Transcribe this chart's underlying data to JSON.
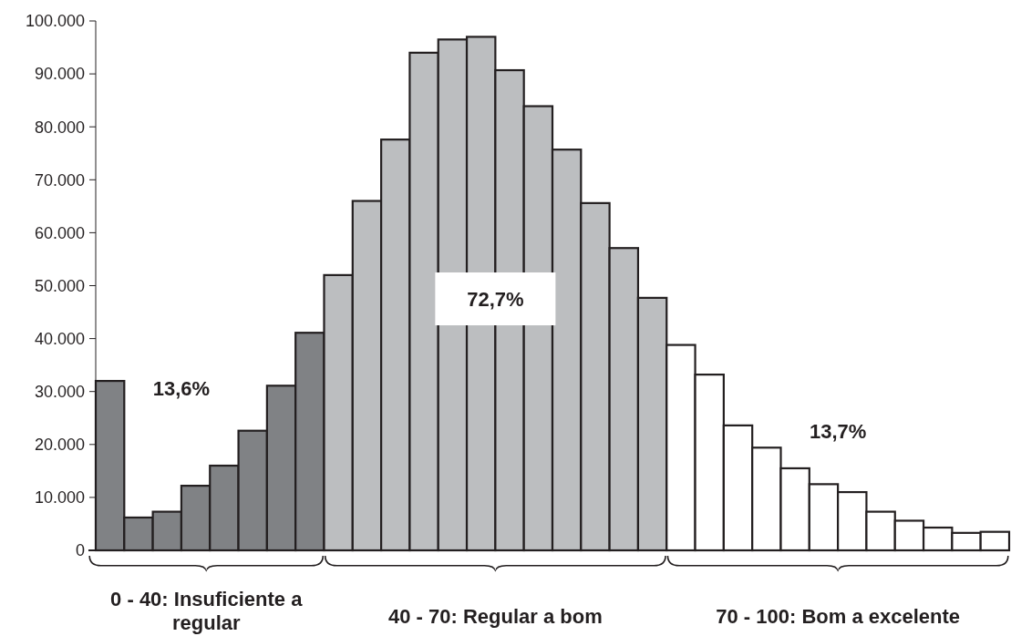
{
  "chart_data": {
    "type": "bar",
    "categories": [
      null,
      null,
      null,
      null,
      null,
      null,
      null,
      null,
      null,
      null,
      null,
      null,
      null,
      null,
      null,
      null,
      null,
      null,
      null,
      null,
      null,
      null,
      null,
      null,
      null,
      null,
      null,
      null,
      null,
      null,
      null,
      null
    ],
    "values": [
      32000,
      6200,
      7300,
      12200,
      16000,
      22600,
      31100,
      41100,
      52000,
      66000,
      77600,
      94000,
      96500,
      97000,
      90700,
      83900,
      75700,
      65600,
      57100,
      47700,
      38800,
      33200,
      23600,
      19400,
      15500,
      12500,
      11000,
      7300,
      5600,
      4300,
      3300,
      3500
    ],
    "colors": [
      "#808285",
      "#808285",
      "#808285",
      "#808285",
      "#808285",
      "#808285",
      "#808285",
      "#808285",
      "#bcbec0",
      "#bcbec0",
      "#bcbec0",
      "#bcbec0",
      "#bcbec0",
      "#bcbec0",
      "#bcbec0",
      "#bcbec0",
      "#bcbec0",
      "#bcbec0",
      "#bcbec0",
      "#bcbec0",
      "#ffffff",
      "#ffffff",
      "#ffffff",
      "#ffffff",
      "#ffffff",
      "#ffffff",
      "#ffffff",
      "#ffffff",
      "#ffffff",
      "#ffffff",
      "#ffffff",
      "#ffffff"
    ],
    "ylim": [
      0,
      100000
    ],
    "yticks": [
      {
        "value": 0,
        "label": "0"
      },
      {
        "value": 10000,
        "label": "10.000"
      },
      {
        "value": 20000,
        "label": "20.000"
      },
      {
        "value": 30000,
        "label": "30.000"
      },
      {
        "value": 40000,
        "label": "40.000"
      },
      {
        "value": 50000,
        "label": "50.000"
      },
      {
        "value": 60000,
        "label": "60.000"
      },
      {
        "value": 70000,
        "label": "70.000"
      },
      {
        "value": 80000,
        "label": "80.000"
      },
      {
        "value": 90000,
        "label": "90.000"
      },
      {
        "value": 100000,
        "label": "100.000"
      }
    ],
    "annotations": [
      "13,6%",
      "72,7%",
      "13,7%",
      "0 - 40: Insuficiente a regular",
      "40 - 70: Regular a bom",
      "70 - 100: Bom a excelente"
    ],
    "grid": false
  }
}
